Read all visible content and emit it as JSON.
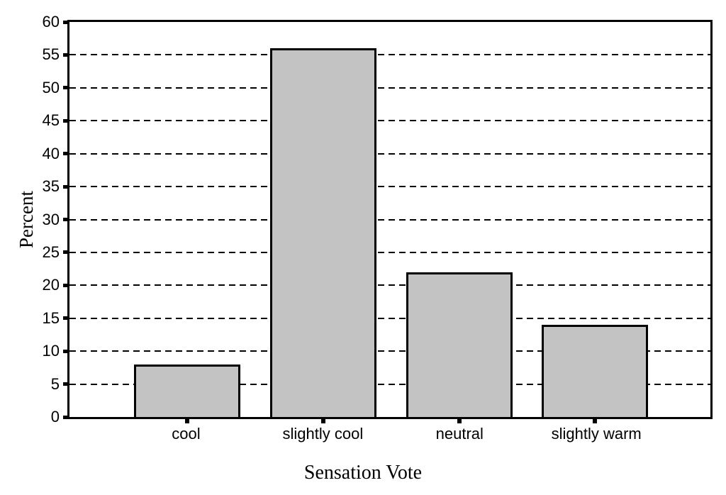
{
  "chart_data": {
    "type": "bar",
    "categories": [
      "cool",
      "slightly cool",
      "neutral",
      "slightly warm"
    ],
    "values": [
      8,
      56,
      22,
      14
    ],
    "title": "",
    "xlabel": "Sensation Vote",
    "ylabel": "Percent",
    "ylim": [
      0,
      60
    ],
    "yticks": [
      0,
      5,
      10,
      15,
      20,
      25,
      30,
      35,
      40,
      45,
      50,
      55,
      60
    ],
    "grid": "horizontal-dashed",
    "legend": "none",
    "bar_fill_color": "#c3c3c3",
    "bar_border_color": "#000000",
    "axis_color": "#000000",
    "background_color": "#ffffff"
  }
}
